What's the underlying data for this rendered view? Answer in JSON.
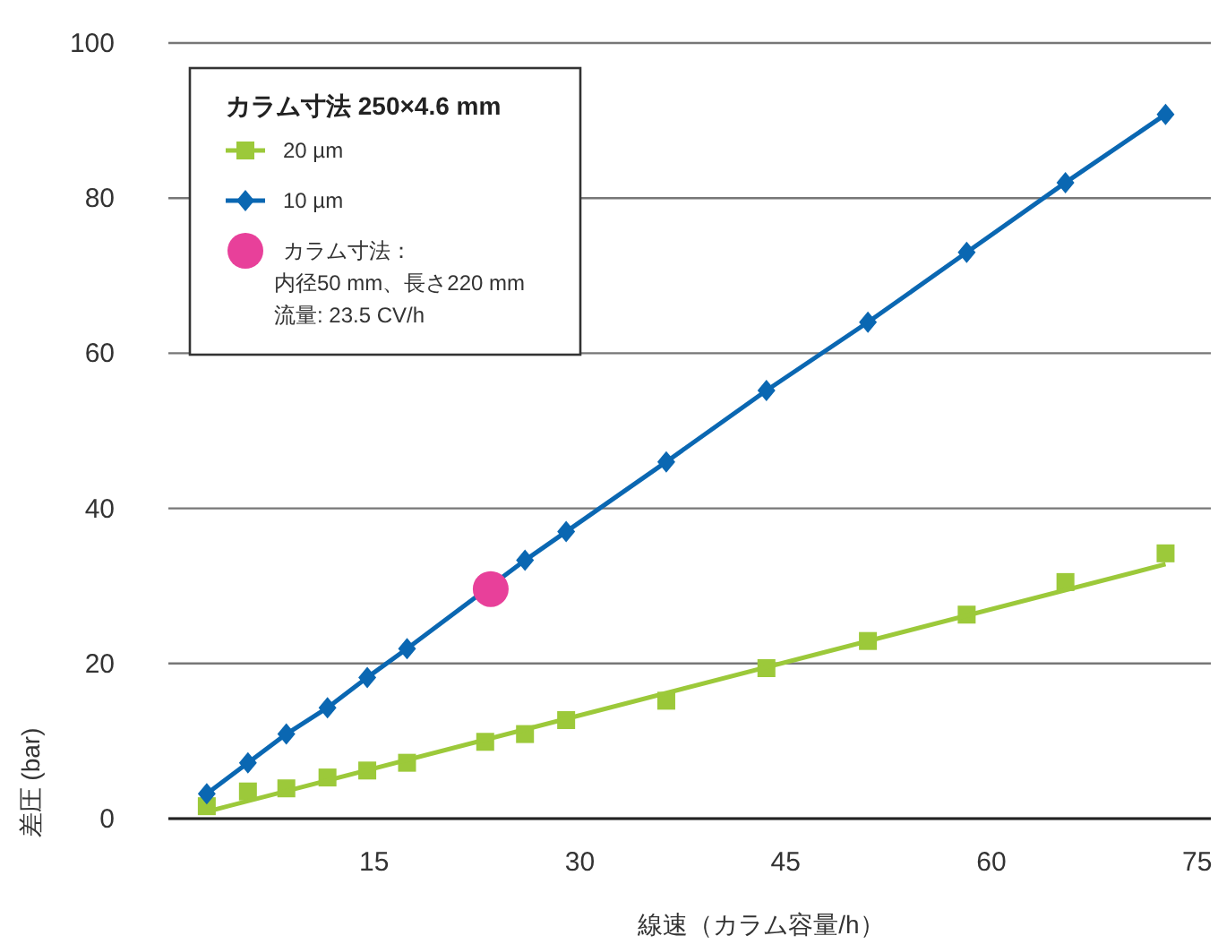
{
  "chart_data": {
    "type": "line",
    "xlabel": "線速（カラム容量/h）",
    "ylabel": "差圧 (bar)",
    "legend_title": "カラム寸法 250×4.6 mm",
    "xlim": [
      0,
      76
    ],
    "xticks": [
      15,
      30,
      45,
      60,
      75
    ],
    "ylim": [
      0,
      100
    ],
    "yticks": [
      0,
      20,
      40,
      60,
      80,
      100
    ],
    "grid": "y",
    "legend": "top left",
    "annotations": [
      "内径50 mm、長さ220 mm",
      "流量: 23.5 CV/h"
    ],
    "series": [
      {
        "name": "20 µm",
        "type": "scatter",
        "color": "#9cc93a",
        "marker": "square",
        "x": [
          2.8,
          5.8,
          8.6,
          11.6,
          14.5,
          17.4,
          23.1,
          26,
          29,
          36.3,
          43.6,
          51,
          58.2,
          65.4,
          72.7
        ],
        "values": [
          1.6,
          3.5,
          3.9,
          5.3,
          6.2,
          7.2,
          9.9,
          10.9,
          12.7,
          15.2,
          19.4,
          22.9,
          26.3,
          30.5,
          34.2
        ]
      },
      {
        "color": "#9cc93a",
        "marker": "none",
        "x": [
          2.8,
          72.7
        ],
        "values": [
          0.9,
          32.8
        ]
      },
      {
        "name": "10 µm",
        "color": "#0a67b2",
        "marker": "diamond",
        "x": [
          2.8,
          5.8,
          8.6,
          11.6,
          14.5,
          17.4,
          26,
          29,
          36.3,
          43.6,
          51,
          58.2,
          65.4,
          72.7
        ],
        "values": [
          3.2,
          7.2,
          10.9,
          14.3,
          18.2,
          21.9,
          33.3,
          37,
          46,
          55.2,
          64,
          73,
          82,
          90.8
        ]
      },
      {
        "name": "カラム寸法：",
        "type": "scatter",
        "color": "#e8409a",
        "marker": "circle",
        "x": [
          23.5
        ],
        "values": [
          29.6
        ]
      }
    ]
  }
}
